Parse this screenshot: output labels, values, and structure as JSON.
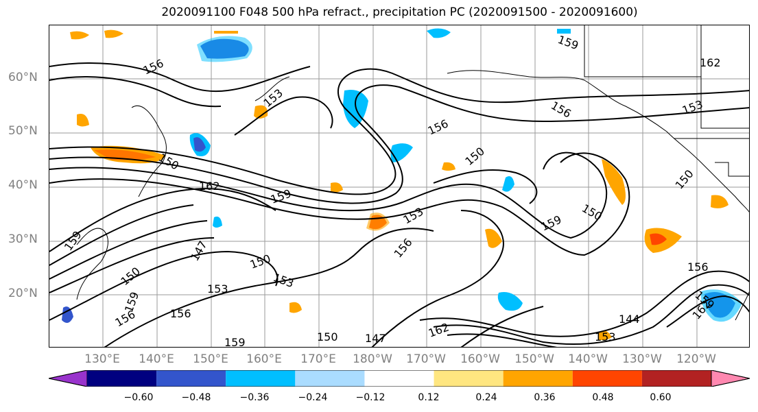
{
  "map": {
    "title": "2020091100 F048 500 hPa refract., precipitation PC (2020091500 - 2020091600)",
    "lat_labels": [
      "60°N",
      "50°N",
      "40°N",
      "30°N",
      "20°N"
    ],
    "lon_labels": [
      "130°E",
      "140°E",
      "150°E",
      "160°E",
      "170°E",
      "180°W",
      "170°W",
      "160°W",
      "150°W",
      "140°W",
      "130°W",
      "120°W"
    ],
    "contour_labels": [
      "156",
      "159",
      "162",
      "156",
      "153",
      "150",
      "153",
      "162",
      "159",
      "156",
      "150",
      "159",
      "150",
      "147",
      "153",
      "150",
      "156",
      "153",
      "159",
      "156",
      "162",
      "150",
      "147",
      "159",
      "144",
      "153",
      "159",
      "156",
      "156",
      "150",
      "159",
      "153",
      "162",
      "150"
    ],
    "colorbar": {
      "ticks": [
        "−0.60",
        "−0.48",
        "−0.36",
        "−0.24",
        "−0.12",
        "0.12",
        "0.24",
        "0.36",
        "0.48",
        "0.60"
      ],
      "colors": [
        "#9933cc",
        "#000080",
        "#3355cc",
        "#00bfff",
        "#aadcff",
        "#ffffff",
        "#ffe680",
        "#ffa500",
        "#ff4500",
        "#b22222",
        "#ff88b0"
      ]
    }
  }
}
